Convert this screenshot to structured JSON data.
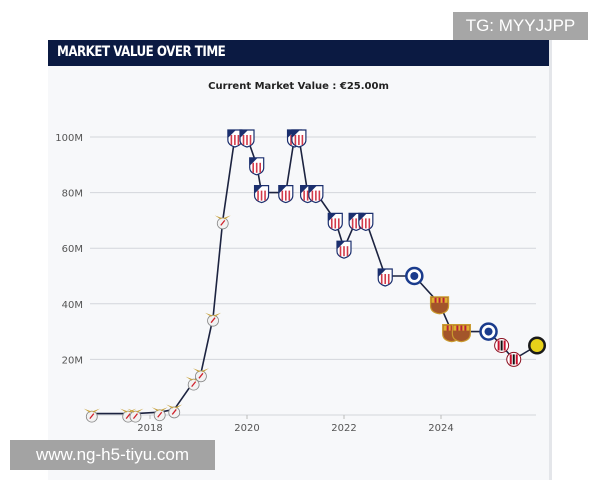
{
  "header": {
    "title": "MARKET VALUE OVER TIME"
  },
  "watermarks": {
    "top_right": "TG: MYYJJPP",
    "bottom_left": "www.ng-h5-tiyu.com"
  },
  "chart_data": {
    "type": "line",
    "title": "MARKET VALUE OVER TIME",
    "subtitle": "Current Market Value : €25.00m",
    "xlabel": "",
    "ylabel": "",
    "xlim": [
      2016.7,
      2026.3
    ],
    "ylim": [
      0,
      100
    ],
    "x_ticks": [
      2018,
      2020,
      2022,
      2024
    ],
    "x_tick_labels": [
      "2018",
      "2020",
      "2022",
      "2024"
    ],
    "y_ticks": [
      20,
      40,
      60,
      80,
      100
    ],
    "y_tick_labels": [
      "20M",
      "40M",
      "60M",
      "80M",
      "100M"
    ],
    "grid": true,
    "line_color": "#1c2340",
    "club_colors": {
      "benfica": "#d0212b",
      "atletico": "#1b2f6e",
      "chelsea": "#1a3b8c",
      "barcelona": "#a50044",
      "milan": "#c8102e",
      "yellow": "#e8d21a"
    },
    "points": [
      {
        "x": 2016.8,
        "y": 0.5,
        "club": "benfica"
      },
      {
        "x": 2017.55,
        "y": 0.5,
        "club": "benfica"
      },
      {
        "x": 2017.7,
        "y": 0.5,
        "club": "benfica"
      },
      {
        "x": 2018.2,
        "y": 1,
        "club": "benfica"
      },
      {
        "x": 2018.5,
        "y": 2,
        "club": "benfica"
      },
      {
        "x": 2018.9,
        "y": 12,
        "club": "benfica"
      },
      {
        "x": 2019.05,
        "y": 15,
        "club": "benfica"
      },
      {
        "x": 2019.3,
        "y": 35,
        "club": "benfica"
      },
      {
        "x": 2019.5,
        "y": 70,
        "club": "benfica"
      },
      {
        "x": 2019.75,
        "y": 100,
        "club": "atletico"
      },
      {
        "x": 2020.0,
        "y": 100,
        "club": "atletico"
      },
      {
        "x": 2020.2,
        "y": 90,
        "club": "atletico"
      },
      {
        "x": 2020.3,
        "y": 80,
        "club": "atletico"
      },
      {
        "x": 2020.8,
        "y": 80,
        "club": "atletico"
      },
      {
        "x": 2020.98,
        "y": 100,
        "club": "atletico"
      },
      {
        "x": 2021.07,
        "y": 100,
        "club": "atletico"
      },
      {
        "x": 2021.25,
        "y": 80,
        "club": "atletico"
      },
      {
        "x": 2021.42,
        "y": 80,
        "club": "atletico"
      },
      {
        "x": 2021.82,
        "y": 70,
        "club": "atletico"
      },
      {
        "x": 2022.0,
        "y": 60,
        "club": "atletico"
      },
      {
        "x": 2022.25,
        "y": 70,
        "club": "atletico"
      },
      {
        "x": 2022.45,
        "y": 70,
        "club": "atletico"
      },
      {
        "x": 2022.85,
        "y": 50,
        "club": "atletico"
      },
      {
        "x": 2023.45,
        "y": 50,
        "club": "chelsea"
      },
      {
        "x": 2023.97,
        "y": 40,
        "club": "barcelona"
      },
      {
        "x": 2024.22,
        "y": 30,
        "club": "barcelona"
      },
      {
        "x": 2024.42,
        "y": 30,
        "club": "barcelona"
      },
      {
        "x": 2024.98,
        "y": 30,
        "club": "chelsea"
      },
      {
        "x": 2025.25,
        "y": 25,
        "club": "milan"
      },
      {
        "x": 2025.5,
        "y": 20,
        "club": "milan"
      },
      {
        "x": 2025.98,
        "y": 25,
        "club": "yellow"
      }
    ]
  }
}
